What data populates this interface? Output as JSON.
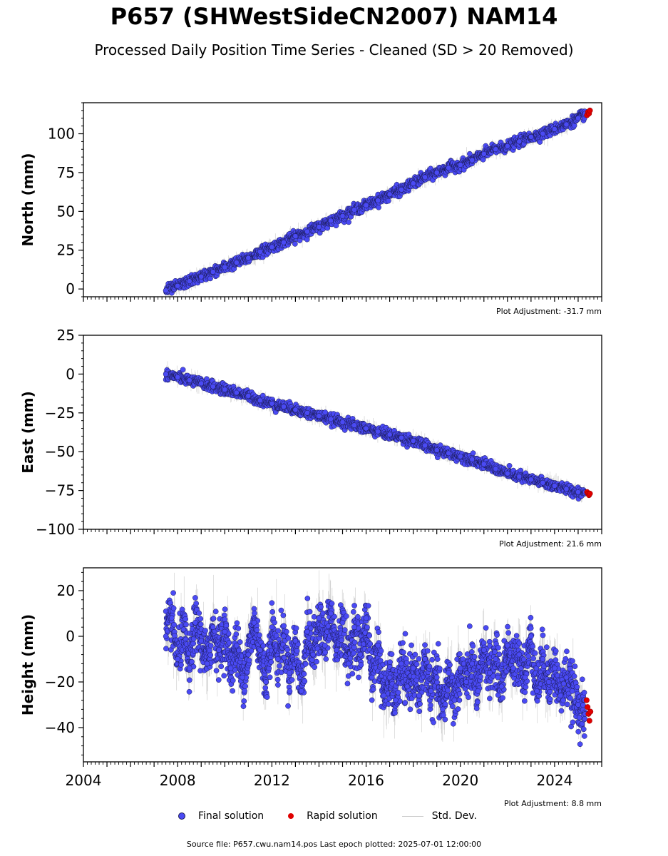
{
  "page": {
    "title": "P657 (SHWestSideCN2007) NAM14",
    "subtitle": "Processed Daily Position Time Series - Cleaned (SD > 20 Removed)",
    "source_line": "Source file: P657.cwu.nam14.pos  Last epoch plotted: 2025-07-01 12:00:00"
  },
  "legend": {
    "final_label": "Final solution",
    "rapid_label": "Rapid solution",
    "std_label": "Std. Dev."
  },
  "colors": {
    "final": "#4a4af4",
    "final_edge": "#1a1a55",
    "rapid": "#e00000",
    "std": "#b8b8b8"
  },
  "chart_data": [
    {
      "type": "scatter",
      "component": "north",
      "ylabel": "North (mm)",
      "xlim": [
        2004,
        2026
      ],
      "ylim": [
        -5,
        120
      ],
      "yticks": [
        0,
        25,
        50,
        75,
        100
      ],
      "adjustment_label": "Plot Adjustment: -31.7 mm",
      "final_x": [
        2007.5,
        2008.0,
        2008.5,
        2009.0,
        2009.5,
        2010.0,
        2010.5,
        2011.0,
        2011.5,
        2012.0,
        2012.5,
        2013.0,
        2013.5,
        2014.0,
        2014.5,
        2015.0,
        2015.5,
        2016.0,
        2016.5,
        2017.0,
        2017.5,
        2018.0,
        2018.5,
        2019.0,
        2019.5,
        2020.0,
        2020.5,
        2021.0,
        2021.5,
        2022.0,
        2022.5,
        2023.0,
        2023.5,
        2024.0,
        2024.5,
        2025.0,
        2025.3
      ],
      "final_y": [
        -1,
        2,
        5,
        8,
        11,
        14,
        17,
        20,
        24,
        27,
        30,
        34,
        37,
        40,
        44,
        47,
        51,
        54,
        57,
        61,
        64,
        68,
        72,
        75,
        78,
        80,
        83,
        87,
        90,
        92,
        95,
        98,
        100,
        103,
        106,
        110,
        113
      ],
      "rapid_x": [
        2025.38,
        2025.42,
        2025.46,
        2025.5
      ],
      "rapid_y": [
        112,
        114,
        113,
        115
      ]
    },
    {
      "type": "scatter",
      "component": "east",
      "ylabel": "East (mm)",
      "xlim": [
        2004,
        2026
      ],
      "ylim": [
        -100,
        25
      ],
      "yticks": [
        -100,
        -75,
        -50,
        -25,
        0,
        25
      ],
      "adjustment_label": "Plot Adjustment: 21.6 mm",
      "final_x": [
        2007.5,
        2008.0,
        2008.5,
        2009.0,
        2009.5,
        2010.0,
        2010.5,
        2011.0,
        2011.5,
        2012.0,
        2012.5,
        2013.0,
        2013.5,
        2014.0,
        2014.5,
        2015.0,
        2015.5,
        2016.0,
        2016.5,
        2017.0,
        2017.5,
        2018.0,
        2018.5,
        2019.0,
        2019.5,
        2020.0,
        2020.5,
        2021.0,
        2021.5,
        2022.0,
        2022.5,
        2023.0,
        2023.5,
        2024.0,
        2024.5,
        2025.0,
        2025.3
      ],
      "final_y": [
        0,
        -2,
        -4,
        -6,
        -8,
        -10,
        -12,
        -14,
        -17,
        -19,
        -21,
        -23,
        -25,
        -27,
        -29,
        -31,
        -33,
        -35,
        -37,
        -39,
        -41,
        -43,
        -46,
        -49,
        -51,
        -53,
        -55,
        -58,
        -61,
        -64,
        -66,
        -68,
        -70,
        -72,
        -74,
        -76,
        -76
      ],
      "rapid_x": [
        2025.38,
        2025.42,
        2025.46,
        2025.5
      ],
      "rapid_y": [
        -76,
        -77,
        -78,
        -77
      ]
    },
    {
      "type": "scatter",
      "component": "height",
      "ylabel": "Height (mm)",
      "xlim": [
        2004,
        2026
      ],
      "ylim": [
        -55,
        30
      ],
      "yticks": [
        -40,
        -20,
        0,
        20
      ],
      "xticks": [
        2004,
        2008,
        2012,
        2016,
        2020,
        2024
      ],
      "adjustment_label": "Plot Adjustment: 8.8 mm",
      "final_x": [
        2007.5,
        2007.75,
        2008.0,
        2008.25,
        2008.5,
        2008.75,
        2009.0,
        2009.25,
        2009.5,
        2009.75,
        2010.0,
        2010.25,
        2010.5,
        2010.75,
        2011.0,
        2011.25,
        2011.5,
        2011.75,
        2012.0,
        2012.25,
        2012.5,
        2012.75,
        2013.0,
        2013.25,
        2013.5,
        2013.75,
        2014.0,
        2014.25,
        2014.5,
        2014.75,
        2015.0,
        2015.25,
        2015.5,
        2015.75,
        2016.0,
        2016.25,
        2016.5,
        2016.75,
        2017.0,
        2017.25,
        2017.5,
        2017.75,
        2018.0,
        2018.25,
        2018.5,
        2018.75,
        2019.0,
        2019.25,
        2019.5,
        2019.75,
        2020.0,
        2020.25,
        2020.5,
        2020.75,
        2021.0,
        2021.25,
        2021.5,
        2021.75,
        2022.0,
        2022.25,
        2022.5,
        2022.75,
        2023.0,
        2023.25,
        2023.5,
        2023.75,
        2024.0,
        2024.25,
        2024.5,
        2024.75,
        2025.0,
        2025.3
      ],
      "final_y": [
        0,
        8,
        -10,
        3,
        -14,
        6,
        -2,
        -12,
        4,
        -6,
        2,
        -14,
        -4,
        -18,
        -8,
        6,
        -6,
        -20,
        4,
        -10,
        0,
        -16,
        -2,
        -24,
        2,
        -8,
        8,
        -4,
        10,
        -6,
        6,
        -12,
        4,
        -8,
        8,
        -18,
        -4,
        -26,
        -18,
        -28,
        -12,
        -22,
        -14,
        -26,
        -10,
        -24,
        -18,
        -32,
        -16,
        -28,
        -14,
        -20,
        -12,
        -24,
        -6,
        -16,
        -10,
        -22,
        -4,
        -14,
        -8,
        -18,
        0,
        -24,
        -10,
        -20,
        -14,
        -26,
        -18,
        -24,
        -30,
        -34
      ],
      "rapid_x": [
        2025.36,
        2025.4,
        2025.44,
        2025.48,
        2025.52
      ],
      "rapid_y": [
        -28,
        -31,
        -34,
        -37,
        -33
      ]
    }
  ]
}
